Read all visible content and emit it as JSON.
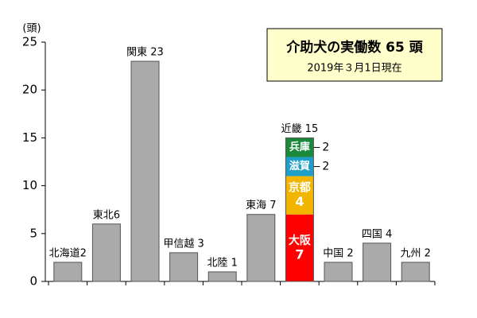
{
  "chart_data": {
    "type": "bar",
    "title": "介助犬の実働数 65 頭",
    "subtitle": "2019年３月1日現在",
    "y_label": "(頭)",
    "values": [
      2,
      6,
      23,
      3,
      1,
      7,
      null,
      2,
      4,
      2
    ],
    "value_labels": [
      "北海道2",
      "東北6",
      "関東 23",
      "甲信越 3",
      "北陸 1",
      "東海 7",
      null,
      "中国 2",
      "四国 4",
      "九州 2"
    ],
    "color": "#aaaaaa",
    "stack": {
      "label": "近畿 15",
      "total": 15,
      "segments": [
        {
          "name": "大阪",
          "value": 7,
          "color": "#ff0000"
        },
        {
          "name": "京都",
          "value": 4,
          "color": "#f2b600"
        },
        {
          "name": "滋賀",
          "value": 2,
          "color": "#1e9fc8"
        },
        {
          "name": "兵庫",
          "value": 2,
          "color": "#1a8a3a"
        }
      ]
    },
    "ylim": [
      0,
      25
    ],
    "yticks": [
      0,
      5,
      10,
      15,
      20,
      25
    ]
  }
}
